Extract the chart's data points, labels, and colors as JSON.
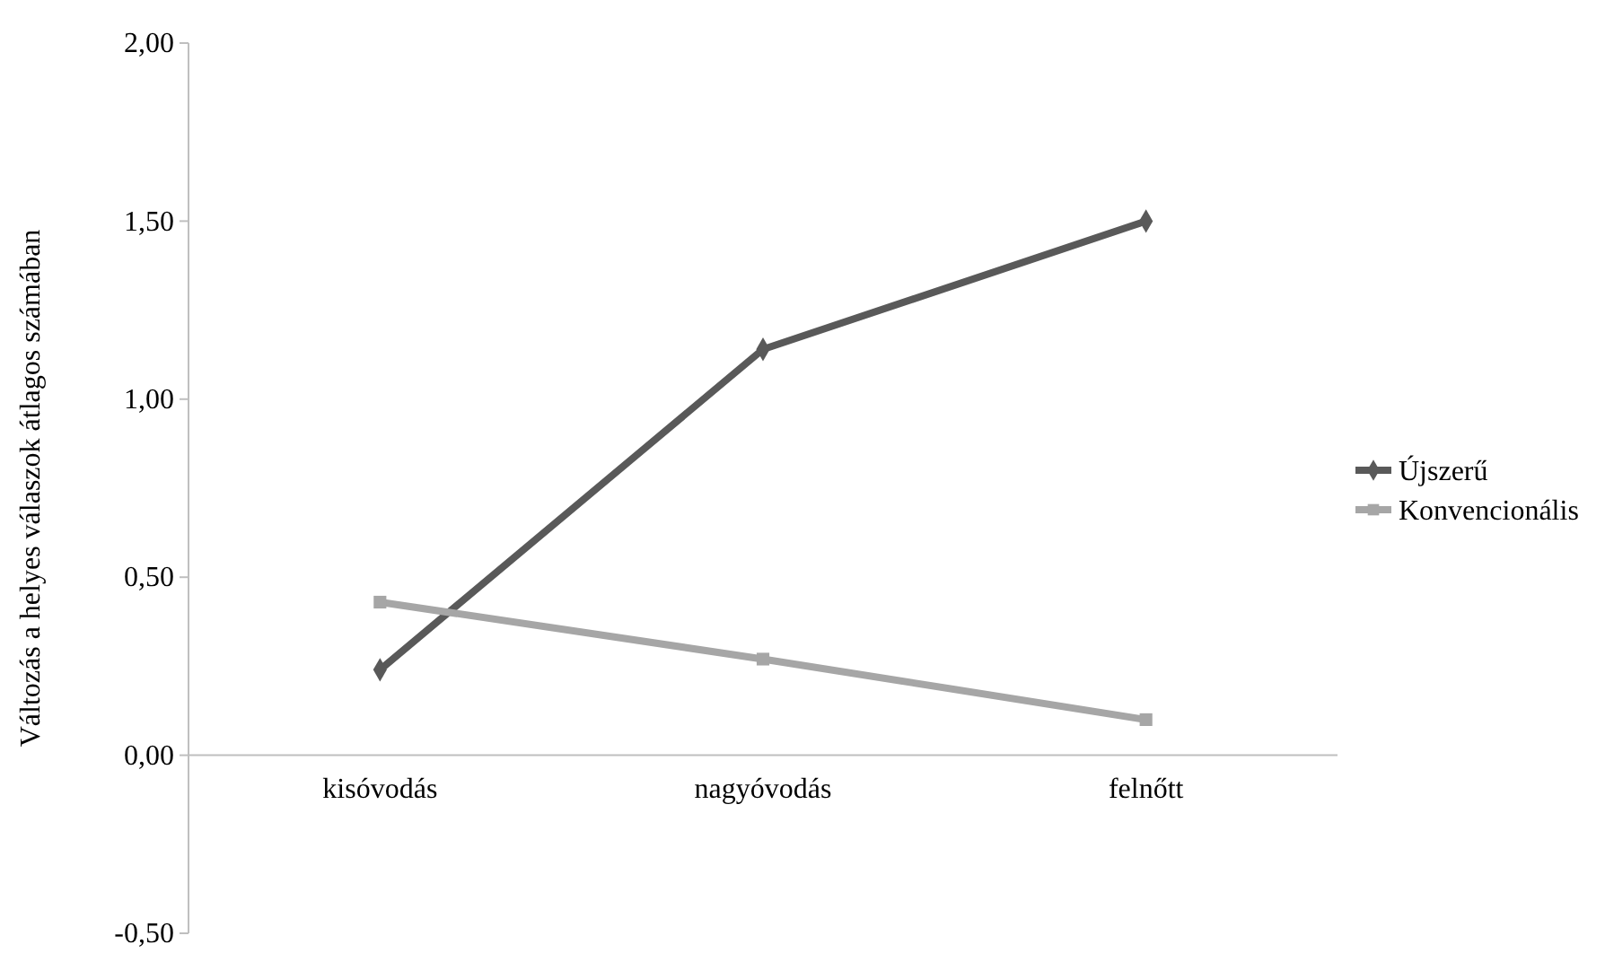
{
  "chart_data": {
    "type": "line",
    "ylabel": "Változás a helyes válaszok átlagos számában",
    "categories": [
      "kisóvodás",
      "nagyóvodás",
      "felnőtt"
    ],
    "series": [
      {
        "name": "Újszerű",
        "color": "#595959",
        "marker": "diamond",
        "values": [
          0.24,
          1.14,
          1.5
        ]
      },
      {
        "name": "Konvencionális",
        "color": "#a6a6a6",
        "marker": "square",
        "values": [
          0.43,
          0.27,
          0.1
        ]
      }
    ],
    "ylim": [
      -0.5,
      2
    ],
    "yticks": [
      {
        "value": -0.5,
        "label": "-0,50"
      },
      {
        "value": 0,
        "label": "0,00"
      },
      {
        "value": 0.5,
        "label": "0,50"
      },
      {
        "value": 1,
        "label": "1,00"
      },
      {
        "value": 1.5,
        "label": "1,50"
      },
      {
        "value": 2,
        "label": "2,00"
      }
    ],
    "grid": false,
    "legend": "right"
  }
}
